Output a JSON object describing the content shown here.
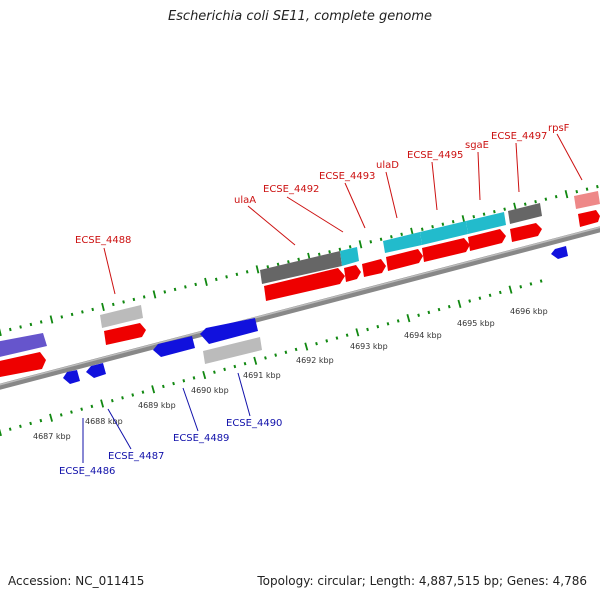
{
  "title": "Escherichia coli SE11, complete genome",
  "footer": {
    "accession": "Accession: NC_011415",
    "summary": "Topology: circular; Length: 4,887,515 bp; Genes: 4,786"
  },
  "colors": {
    "forward_label": "#cc1111",
    "reverse_label": "#1111aa",
    "cds": "#ee0000",
    "cds_reverse": "#1111dd",
    "gene_gray": "#666666",
    "gene_light": "#bbbbbb",
    "gene_cyan": "#22bbcc",
    "gene_purple": "#6655cc",
    "gene_pink": "#ee8888",
    "tick": "#118811",
    "backbone": "#888888"
  },
  "kbp_labels": [
    "4687 kbp",
    "4688 kbp",
    "4689 kbp",
    "4690 kbp",
    "4691 kbp",
    "4692 kbp",
    "4693 kbp",
    "4694 kbp",
    "4695 kbp",
    "4696 kbp"
  ],
  "forward_genes": [
    "ECSE_4488",
    "ulaA",
    "ECSE_4492",
    "ECSE_4493",
    "ulaD",
    "ECSE_4495",
    "sgaE",
    "ECSE_4497",
    "rpsF"
  ],
  "reverse_genes": [
    "ECSE_4486",
    "ECSE_4487",
    "ECSE_4489",
    "ECSE_4490"
  ]
}
